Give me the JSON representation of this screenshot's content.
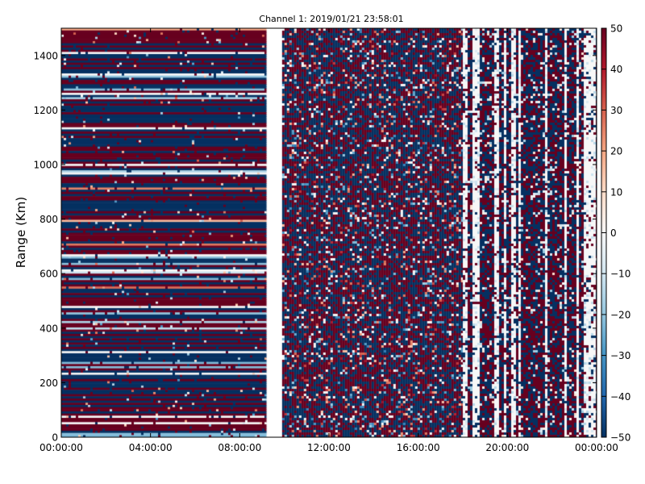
{
  "chart_data": {
    "type": "heatmap",
    "title": "Channel 1: 2019/01/21 23:58:01",
    "xlabel": "",
    "ylabel": "Range (Km)",
    "x_ticks": [
      "00:00:00",
      "04:00:00",
      "08:00:00",
      "12:00:00",
      "16:00:00",
      "20:00:00",
      "00:00:00"
    ],
    "x_range_hours": [
      0,
      24
    ],
    "y_ticks": [
      0,
      200,
      400,
      600,
      800,
      1000,
      1200,
      1400
    ],
    "y_range": [
      0,
      1500
    ],
    "colorbar": {
      "range": [
        -50,
        50
      ],
      "ticks": [
        50,
        40,
        30,
        20,
        10,
        0,
        -10,
        -20,
        -30,
        -40,
        -50
      ],
      "colormap": "RdBu_r",
      "stops": [
        "#053061",
        "#2166ac",
        "#4393c3",
        "#92c5de",
        "#d1e5f0",
        "#f7f7f7",
        "#fddbc7",
        "#f4a582",
        "#d6604d",
        "#b2182b",
        "#67001f"
      ]
    },
    "grid": false,
    "data_gap_hours": [
      9.2,
      9.9
    ],
    "data_regions": [
      {
        "hours": [
          0,
          9.2
        ],
        "pattern": "horizontal range bands, mostly saturated at +50 and -50"
      },
      {
        "hours": [
          9.9,
          18
        ],
        "pattern": "noisy speckle, mostly saturated at +50 and -50"
      },
      {
        "hours": [
          18,
          24
        ],
        "pattern": "vertical streaks, dark blue/red alternating with near-zero white columns"
      }
    ]
  }
}
